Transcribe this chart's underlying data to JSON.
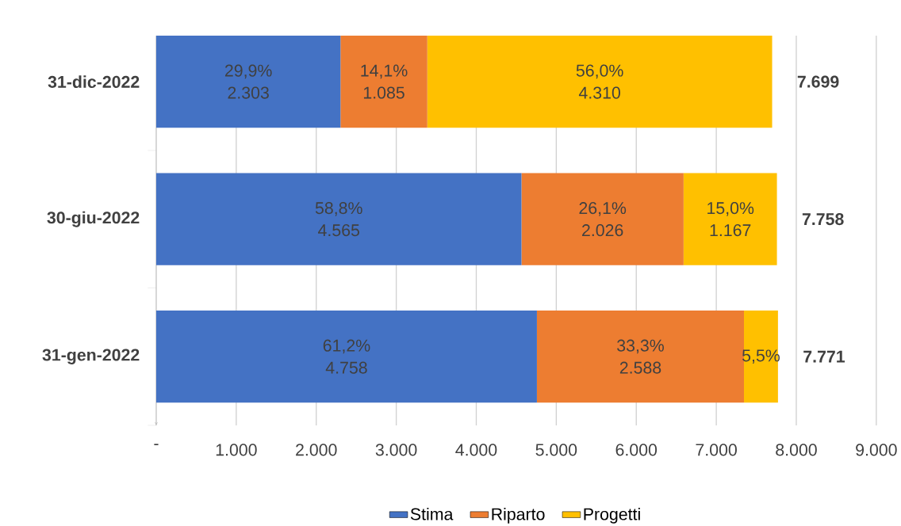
{
  "chart_data": {
    "type": "bar",
    "orientation": "horizontal",
    "stacked": true,
    "categories": [
      "31-dic-2022",
      "30-giu-2022",
      "31-gen-2022"
    ],
    "series": [
      {
        "name": "Stima",
        "color": "#4472c4",
        "values": [
          2303,
          4565,
          4758
        ],
        "value_labels": [
          [
            "29,9%",
            "2.303"
          ],
          [
            "58,8%",
            "4.565"
          ],
          [
            "61,2%",
            "4.758"
          ]
        ]
      },
      {
        "name": "Riparto",
        "color": "#ed7d31",
        "values": [
          1085,
          2026,
          2588
        ],
        "value_labels": [
          [
            "14,1%",
            "1.085"
          ],
          [
            "26,1%",
            "2.026"
          ],
          [
            "33,3%",
            "2.588"
          ]
        ]
      },
      {
        "name": "Progetti",
        "color": "#ffc000",
        "values": [
          4310,
          1167,
          425
        ],
        "value_labels": [
          [
            "56,0%",
            "4.310"
          ],
          [
            "15,0%",
            "1.167"
          ],
          [
            "5,5%"
          ]
        ]
      }
    ],
    "totals": [
      "7.699",
      "7.758",
      "7.771"
    ],
    "xlim": [
      0,
      9000
    ],
    "xticks": [
      {
        "value": 0,
        "label": "-"
      },
      {
        "value": 1000,
        "label": "1.000"
      },
      {
        "value": 2000,
        "label": "2.000"
      },
      {
        "value": 3000,
        "label": "3.000"
      },
      {
        "value": 4000,
        "label": "4.000"
      },
      {
        "value": 5000,
        "label": "5.000"
      },
      {
        "value": 6000,
        "label": "6.000"
      },
      {
        "value": 7000,
        "label": "7.000"
      },
      {
        "value": 8000,
        "label": "8.000"
      },
      {
        "value": 9000,
        "label": "9.000"
      }
    ],
    "grid": "x",
    "legend": "bottom"
  }
}
